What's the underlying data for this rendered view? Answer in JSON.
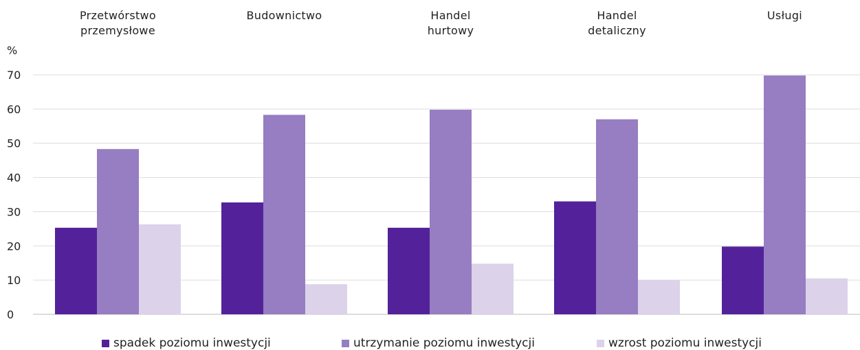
{
  "chart_data": {
    "type": "bar",
    "categories": [
      "Przetwórstwo\nprzemysłowe",
      "Budownictwo",
      "Handel\nhurtowy",
      "Handel\ndetaliczny",
      "Usługi"
    ],
    "series": [
      {
        "name": "spadek poziomu inwestycji",
        "color": "#53229a",
        "values": [
          25.3,
          32.7,
          25.3,
          33.0,
          19.8
        ]
      },
      {
        "name": "utrzymanie poziomu inwestycji",
        "color": "#977dc1",
        "values": [
          48.3,
          58.3,
          59.8,
          57.0,
          69.8
        ]
      },
      {
        "name": "wzrost poziomu inwestycji",
        "color": "#dcd2ea",
        "values": [
          26.3,
          8.8,
          14.8,
          10.0,
          10.5
        ]
      }
    ],
    "ylabel": "%",
    "ylim": [
      0,
      70
    ],
    "yticks": [
      0,
      10,
      20,
      30,
      40,
      50,
      60,
      70
    ],
    "grid": true,
    "legend_position": "bottom"
  }
}
